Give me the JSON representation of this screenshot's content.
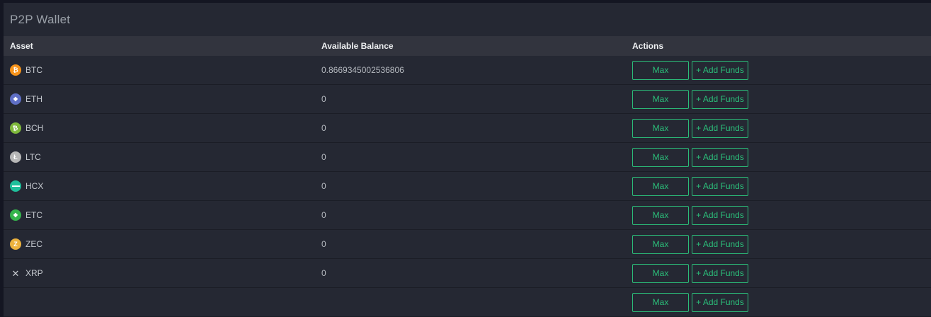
{
  "page": {
    "title": "P2P Wallet"
  },
  "table": {
    "columns": [
      "Asset",
      "Available Balance",
      "Actions"
    ],
    "actions": {
      "max_label": "Max",
      "add_funds_label": "+ Add Funds"
    },
    "rows": [
      {
        "symbol": "BTC",
        "icon": "btc-coin-icon",
        "glyph": "₿",
        "icon_bg": "#f7931a",
        "balance": "0.8669345002536806"
      },
      {
        "symbol": "ETH",
        "icon": "eth-coin-icon",
        "glyph": "◆",
        "icon_bg": "#5f6fc5",
        "balance": "0"
      },
      {
        "symbol": "BCH",
        "icon": "bch-coin-icon",
        "glyph": "₿",
        "icon_bg": "#7fb93c",
        "balance": "0"
      },
      {
        "symbol": "LTC",
        "icon": "ltc-coin-icon",
        "glyph": "Ł",
        "icon_bg": "#b7b7b7",
        "balance": "0"
      },
      {
        "symbol": "HCX",
        "icon": "hcx-coin-icon",
        "glyph": "▬▬",
        "icon_bg": "#1fbf9b",
        "balance": "0"
      },
      {
        "symbol": "ETC",
        "icon": "etc-coin-icon",
        "glyph": "◆",
        "icon_bg": "#35b54c",
        "balance": "0"
      },
      {
        "symbol": "ZEC",
        "icon": "zec-coin-icon",
        "glyph": "Z",
        "icon_bg": "#ecb23e",
        "balance": "0"
      },
      {
        "symbol": "XRP",
        "icon": "xrp-coin-icon",
        "glyph": "✕",
        "icon_bg": "",
        "balance": "0"
      },
      {
        "symbol": "",
        "icon": "",
        "glyph": "",
        "icon_bg": "",
        "balance": "",
        "partial": true
      }
    ]
  },
  "colors": {
    "accent_green": "#2bbd79",
    "panel_bg": "#252833",
    "table_header_bg": "#32343e",
    "page_bg": "#141622",
    "row_divider": "#1b1d26"
  }
}
